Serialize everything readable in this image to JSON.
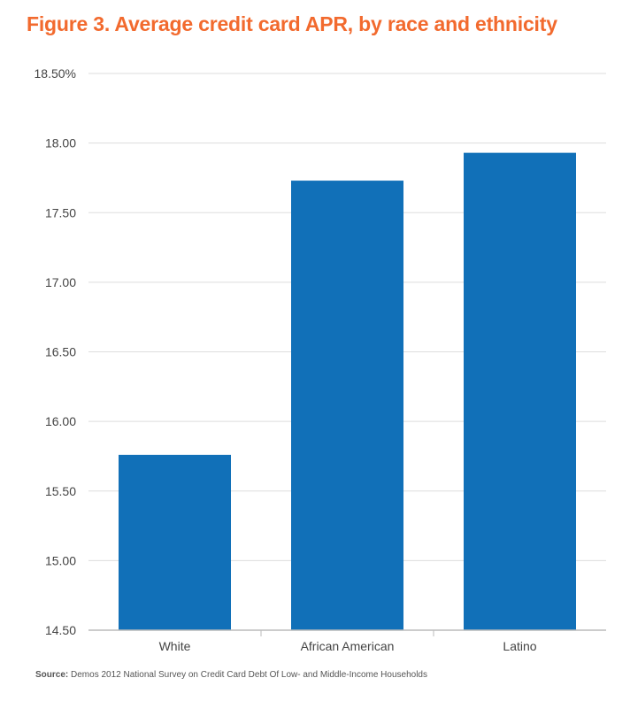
{
  "figure": {
    "title": "Figure 3. Average credit card APR, by race and ethnicity",
    "source_label": "Source:",
    "source_text": "Demos 2012 National Survey on Credit Card Debt Of Low- and Middle-Income Households"
  },
  "colors": {
    "title": "#f26a2e",
    "bar": "#1170b8",
    "grid": "#dddddd",
    "axis": "#bbbbbb",
    "text": "#444444"
  },
  "chart_data": {
    "type": "bar",
    "title": "Figure 3. Average credit card APR, by race and ethnicity",
    "xlabel": "",
    "ylabel": "",
    "categories": [
      "White",
      "African American",
      "Latino"
    ],
    "values": [
      15.76,
      17.73,
      17.93
    ],
    "ylim": [
      14.5,
      18.5
    ],
    "yticks": [
      14.5,
      15.0,
      15.5,
      16.0,
      16.5,
      17.0,
      17.5,
      18.0,
      18.5
    ],
    "ytick_labels": [
      "14.50",
      "15.00",
      "15.50",
      "16.00",
      "16.50",
      "17.00",
      "17.50",
      "18.00",
      "18.50%"
    ],
    "grid": true,
    "legend": "none"
  }
}
